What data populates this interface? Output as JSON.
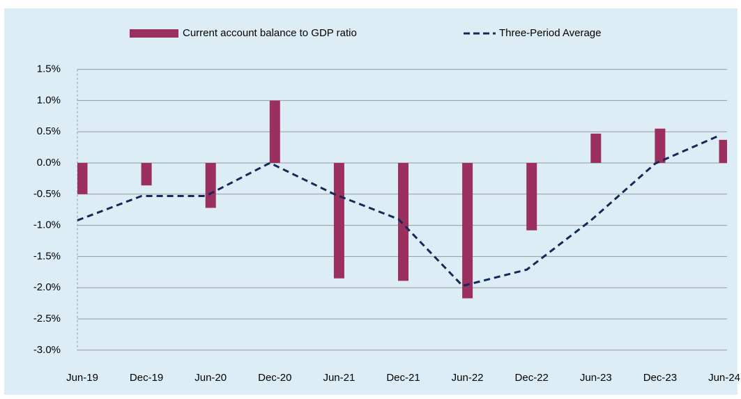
{
  "chart_data": {
    "type": "bar",
    "categories": [
      "Jun-19",
      "Dec-19",
      "Jun-20",
      "Dec-20",
      "Jun-21",
      "Dec-21",
      "Jun-22",
      "Dec-22",
      "Jun-23",
      "Dec-23",
      "Jun-24"
    ],
    "series": [
      {
        "name": "Current account balance to GDP ratio",
        "type": "bar",
        "color": "#9b2f5e",
        "values": [
          -0.5,
          -0.36,
          -0.72,
          1.0,
          -1.85,
          -1.89,
          -2.17,
          -1.08,
          0.47,
          0.55,
          0.37
        ]
      },
      {
        "name": "Three-Period Average",
        "type": "line",
        "color": "#14285a",
        "dashed": true,
        "values": [
          -0.92,
          -0.53,
          -0.53,
          0.0,
          -0.5,
          -0.9,
          -1.97,
          -1.71,
          -0.92,
          -0.01,
          0.44
        ]
      }
    ],
    "ylim": [
      -3.0,
      1.5
    ],
    "yticks": [
      {
        "value": -3.0,
        "label": "-3.0%"
      },
      {
        "value": -2.5,
        "label": "-2.5%"
      },
      {
        "value": -2.0,
        "label": "-2.0%"
      },
      {
        "value": -1.5,
        "label": "-1.5%"
      },
      {
        "value": -1.0,
        "label": "-1.0%"
      },
      {
        "value": -0.5,
        "label": "-0.5%"
      },
      {
        "value": 0.0,
        "label": "0.0%"
      },
      {
        "value": 0.5,
        "label": "0.5%"
      },
      {
        "value": 1.0,
        "label": "1.0%"
      },
      {
        "value": 1.5,
        "label": "1.5%"
      }
    ],
    "grid": true,
    "legend": "top"
  }
}
